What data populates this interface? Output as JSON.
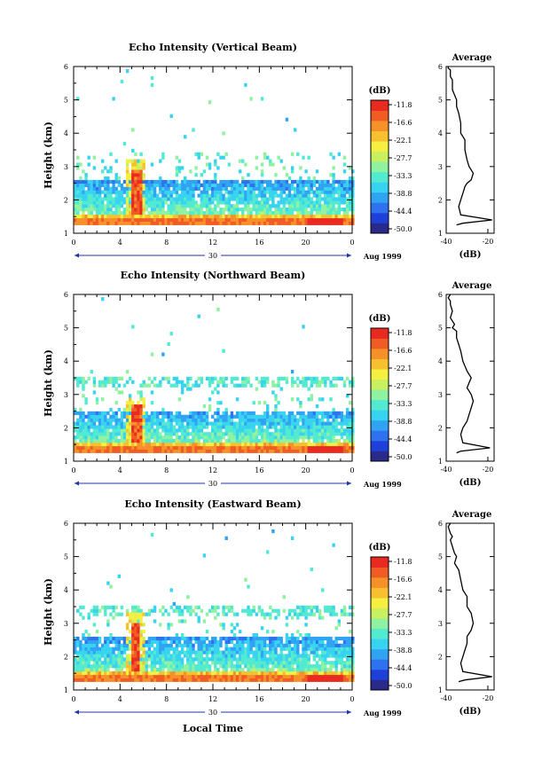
{
  "figure": {
    "xlabel": "Local Time",
    "date_label": "Aug 1999",
    "date_day": "30",
    "colorbar_unit": "(dB)",
    "profile_title": "Average",
    "profile_xlabel": "(dB)"
  },
  "colorbar": {
    "ticks": [
      "-11.8",
      "-16.6",
      "-22.1",
      "-27.7",
      "-33.3",
      "-38.8",
      "-44.4",
      "-50.0"
    ],
    "colors": [
      "#2a2a8a",
      "#1e40d8",
      "#2f72f0",
      "#30a4f2",
      "#38d3f0",
      "#52ead0",
      "#8ef2a0",
      "#c8f060",
      "#f4ef40",
      "#f6c030",
      "#f69028",
      "#f05c24",
      "#e82a20"
    ]
  },
  "chart_data": [
    {
      "type": "heatmap",
      "title": "Echo Intensity (Vertical Beam)",
      "xlabel": "Local Time",
      "ylabel": "Height (km)",
      "xticks": [
        "0",
        "4",
        "8",
        "12",
        "16",
        "20",
        "0"
      ],
      "xlim": [
        0,
        24
      ],
      "ylim": [
        1,
        6
      ],
      "yticks": [
        "1",
        "2",
        "3",
        "4",
        "5",
        "6"
      ],
      "colorbar_unit": "(dB)",
      "colorbar_range": [
        -50.0,
        -11.8
      ],
      "features": {
        "surface_layer_km": [
          1.3,
          1.5
        ],
        "main_echo_top_km": 2.5,
        "strong_echo_time_h": 5.3,
        "strong_echo_top_km": 2.9
      }
    },
    {
      "type": "line",
      "title": "Average",
      "xlabel": "(dB)",
      "xticks": [
        "-40",
        "-20"
      ],
      "yticks": [
        "1",
        "2",
        "3",
        "4",
        "5",
        "6"
      ],
      "xlim": [
        -40,
        -17
      ],
      "ylim": [
        1,
        6
      ],
      "x": [
        -35,
        -32,
        -18,
        -33,
        -34,
        -33,
        -32,
        -31,
        -30,
        -28,
        -27,
        -29,
        -30,
        -31,
        -31,
        -33,
        -33,
        -34,
        -35,
        -35,
        -36,
        -37,
        -37,
        -37,
        -38,
        -38,
        -38,
        -39,
        -39
      ],
      "y": [
        1.25,
        1.3,
        1.4,
        1.55,
        1.8,
        2.0,
        2.2,
        2.4,
        2.5,
        2.6,
        2.8,
        3.0,
        3.2,
        3.5,
        3.8,
        4.0,
        4.3,
        4.6,
        4.8,
        5.0,
        5.15,
        5.3,
        5.5,
        5.6,
        5.7,
        5.8,
        5.9,
        5.95,
        6.0
      ]
    },
    {
      "type": "heatmap",
      "title": "Echo Intensity (Northward Beam)",
      "xlabel": "Local Time",
      "ylabel": "Height (km)",
      "xticks": [
        "0",
        "4",
        "8",
        "12",
        "16",
        "20",
        "0"
      ],
      "xlim": [
        0,
        24
      ],
      "ylim": [
        1,
        6
      ],
      "yticks": [
        "1",
        "2",
        "3",
        "4",
        "5",
        "6"
      ],
      "colorbar_unit": "(dB)",
      "colorbar_range": [
        -50.0,
        -11.8
      ],
      "features": {
        "surface_layer_km": [
          1.3,
          1.5
        ],
        "main_echo_top_km": 2.4,
        "upper_layer_km": [
          3.2,
          3.5
        ],
        "strong_echo_time_h": 5.3,
        "strong_echo_top_km": 2.6
      }
    },
    {
      "type": "line",
      "title": "Average",
      "xlabel": "(dB)",
      "xticks": [
        "-40",
        "-20"
      ],
      "yticks": [
        "1",
        "2",
        "3",
        "4",
        "5",
        "6"
      ],
      "xlim": [
        -40,
        -17
      ],
      "ylim": [
        1,
        6
      ],
      "x": [
        -35,
        -33,
        -19,
        -32,
        -33,
        -32,
        -30,
        -29,
        -28,
        -27,
        -28,
        -30,
        -29,
        -28,
        -30,
        -32,
        -33,
        -34,
        -35,
        -35,
        -37,
        -36,
        -38,
        -37,
        -38,
        -38,
        -39,
        -38
      ],
      "y": [
        1.25,
        1.3,
        1.4,
        1.55,
        1.8,
        2.0,
        2.2,
        2.4,
        2.6,
        2.8,
        3.0,
        3.2,
        3.35,
        3.5,
        3.7,
        4.0,
        4.3,
        4.5,
        4.7,
        4.9,
        5.0,
        5.1,
        5.3,
        5.5,
        5.7,
        5.8,
        5.9,
        6.0
      ]
    },
    {
      "type": "heatmap",
      "title": "Echo Intensity (Eastward Beam)",
      "xlabel": "Local Time",
      "ylabel": "Height (km)",
      "xticks": [
        "0",
        "4",
        "8",
        "12",
        "16",
        "20",
        "0"
      ],
      "xlim": [
        0,
        24
      ],
      "ylim": [
        1,
        6
      ],
      "yticks": [
        "1",
        "2",
        "3",
        "4",
        "5",
        "6"
      ],
      "colorbar_unit": "(dB)",
      "colorbar_range": [
        -50.0,
        -11.8
      ],
      "features": {
        "surface_layer_km": [
          1.3,
          1.5
        ],
        "main_echo_top_km": 2.5,
        "upper_layer_km": [
          3.2,
          3.5
        ],
        "strong_echo_time_h": 5.2,
        "strong_echo_top_km": 3.0
      }
    },
    {
      "type": "line",
      "title": "Average",
      "xlabel": "(dB)",
      "xticks": [
        "-40",
        "-20"
      ],
      "yticks": [
        "1",
        "2",
        "3",
        "4",
        "5",
        "6"
      ],
      "xlim": [
        -40,
        -17
      ],
      "ylim": [
        1,
        6
      ],
      "x": [
        -34,
        -31,
        -18,
        -32,
        -33,
        -32,
        -31,
        -30,
        -30,
        -28,
        -27,
        -28,
        -30,
        -30,
        -32,
        -33,
        -34,
        -36,
        -35,
        -36,
        -37,
        -38,
        -37,
        -38,
        -39,
        -38
      ],
      "y": [
        1.25,
        1.3,
        1.4,
        1.55,
        1.8,
        2.0,
        2.2,
        2.4,
        2.6,
        2.8,
        3.0,
        3.3,
        3.5,
        3.8,
        4.0,
        4.3,
        4.6,
        4.8,
        5.0,
        5.1,
        5.3,
        5.5,
        5.6,
        5.7,
        5.9,
        6.0
      ]
    }
  ]
}
